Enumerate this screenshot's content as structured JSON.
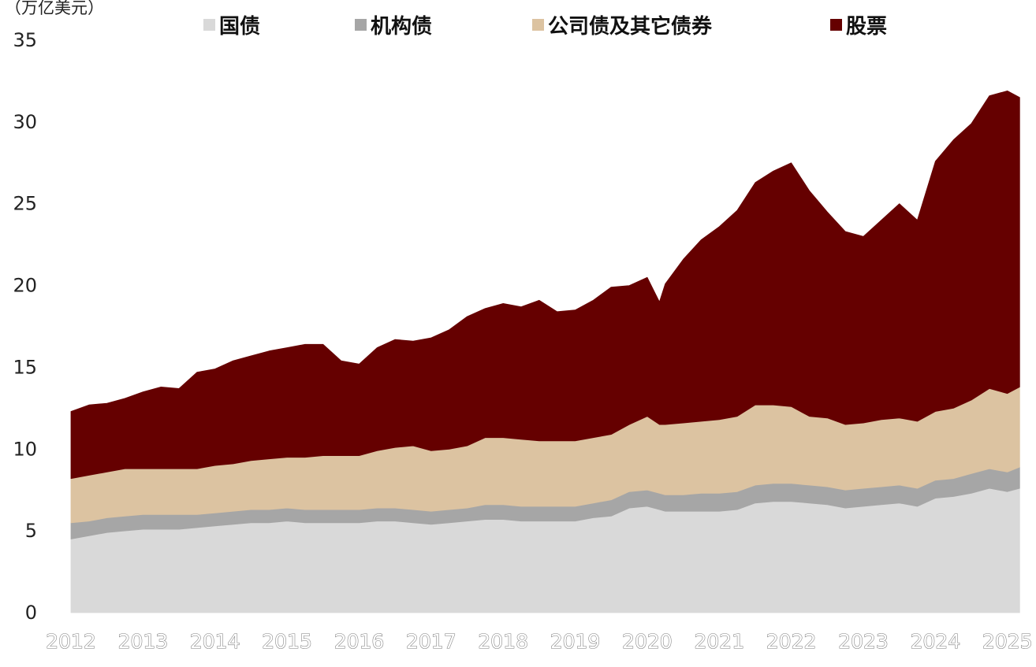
{
  "chart_data": {
    "type": "area",
    "stacked": true,
    "unit_label": "（万亿美元）",
    "xlabel": "",
    "ylabel": "",
    "ylim": [
      0,
      35
    ],
    "yticks": [
      0,
      5,
      10,
      15,
      20,
      25,
      30,
      35
    ],
    "xlim": [
      2012,
      2025.2
    ],
    "xticks": [
      "2012",
      "2013",
      "2014",
      "2015",
      "2016",
      "2017",
      "2018",
      "2019",
      "2020",
      "2021",
      "2022",
      "2023",
      "2024",
      "2025"
    ],
    "grid": false,
    "legend_position": "top",
    "x": [
      2012.0,
      2012.25,
      2012.5,
      2012.75,
      2013.0,
      2013.25,
      2013.5,
      2013.75,
      2014.0,
      2014.25,
      2014.5,
      2014.75,
      2015.0,
      2015.25,
      2015.5,
      2015.75,
      2016.0,
      2016.25,
      2016.5,
      2016.75,
      2017.0,
      2017.25,
      2017.5,
      2017.75,
      2018.0,
      2018.25,
      2018.5,
      2018.75,
      2019.0,
      2019.25,
      2019.5,
      2019.75,
      2020.0,
      2020.17,
      2020.25,
      2020.5,
      2020.75,
      2021.0,
      2021.25,
      2021.5,
      2021.75,
      2022.0,
      2022.25,
      2022.5,
      2022.75,
      2023.0,
      2023.25,
      2023.5,
      2023.75,
      2024.0,
      2024.25,
      2024.5,
      2024.75,
      2025.0,
      2025.17
    ],
    "series": [
      {
        "name": "国债",
        "color": "#d9d9d9",
        "values": [
          4.5,
          4.7,
          4.9,
          5.0,
          5.1,
          5.1,
          5.1,
          5.2,
          5.3,
          5.4,
          5.5,
          5.5,
          5.6,
          5.5,
          5.5,
          5.5,
          5.5,
          5.6,
          5.6,
          5.5,
          5.4,
          5.5,
          5.6,
          5.7,
          5.7,
          5.6,
          5.6,
          5.6,
          5.6,
          5.8,
          5.9,
          6.4,
          6.5,
          6.3,
          6.2,
          6.2,
          6.2,
          6.2,
          6.3,
          6.7,
          6.8,
          6.8,
          6.7,
          6.6,
          6.4,
          6.5,
          6.6,
          6.7,
          6.5,
          7.0,
          7.1,
          7.3,
          7.6,
          7.4,
          7.6
        ]
      },
      {
        "name": "机构债",
        "color": "#a6a6a6",
        "values": [
          1.0,
          0.9,
          0.9,
          0.9,
          0.9,
          0.9,
          0.9,
          0.8,
          0.8,
          0.8,
          0.8,
          0.8,
          0.8,
          0.8,
          0.8,
          0.8,
          0.8,
          0.8,
          0.8,
          0.8,
          0.8,
          0.8,
          0.8,
          0.9,
          0.9,
          0.9,
          0.9,
          0.9,
          0.9,
          0.9,
          1.0,
          1.0,
          1.0,
          1.0,
          1.0,
          1.0,
          1.1,
          1.1,
          1.1,
          1.1,
          1.1,
          1.1,
          1.1,
          1.1,
          1.1,
          1.1,
          1.1,
          1.1,
          1.1,
          1.1,
          1.1,
          1.2,
          1.2,
          1.2,
          1.3
        ]
      },
      {
        "name": "公司债及其它债券",
        "color": "#dcc3a1",
        "values": [
          2.7,
          2.8,
          2.8,
          2.9,
          2.8,
          2.8,
          2.8,
          2.8,
          2.9,
          2.9,
          3.0,
          3.1,
          3.1,
          3.2,
          3.3,
          3.3,
          3.3,
          3.5,
          3.7,
          3.9,
          3.7,
          3.7,
          3.8,
          4.1,
          4.1,
          4.1,
          4.0,
          4.0,
          4.0,
          4.0,
          4.0,
          4.1,
          4.5,
          4.2,
          4.3,
          4.4,
          4.4,
          4.5,
          4.6,
          4.9,
          4.8,
          4.7,
          4.2,
          4.2,
          4.0,
          4.0,
          4.1,
          4.1,
          4.1,
          4.2,
          4.3,
          4.5,
          4.9,
          4.8,
          4.9
        ]
      },
      {
        "name": "股票",
        "color": "#650000",
        "values": [
          4.1,
          4.3,
          4.2,
          4.3,
          4.7,
          5.0,
          4.9,
          5.9,
          5.9,
          6.3,
          6.4,
          6.6,
          6.7,
          6.9,
          6.8,
          5.8,
          5.6,
          6.3,
          6.6,
          6.4,
          6.9,
          7.3,
          7.9,
          7.9,
          8.2,
          8.1,
          8.6,
          7.9,
          8.0,
          8.4,
          9.0,
          8.5,
          8.5,
          7.5,
          8.6,
          10.0,
          11.1,
          11.8,
          12.6,
          13.6,
          14.3,
          14.9,
          13.8,
          12.6,
          11.8,
          11.4,
          12.2,
          13.1,
          12.3,
          15.3,
          16.4,
          16.9,
          17.9,
          18.5,
          17.7
        ]
      }
    ]
  }
}
